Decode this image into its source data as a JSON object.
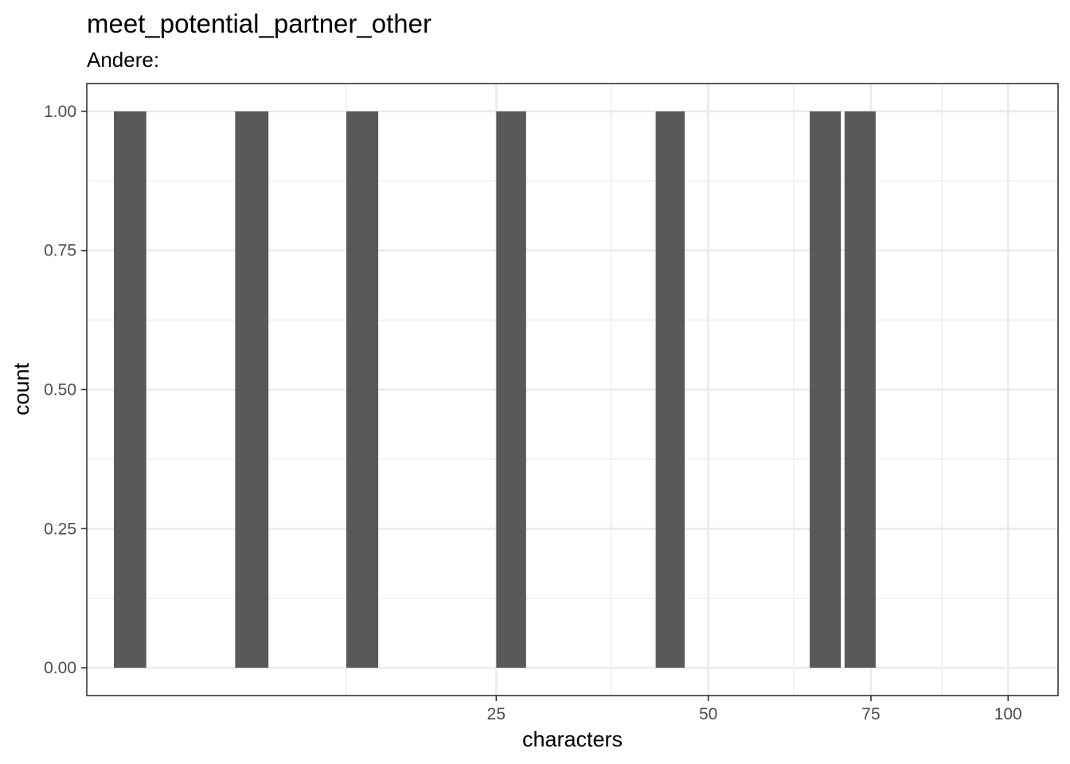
{
  "chart_data": {
    "type": "bar",
    "title": "meet_potential_partner_other",
    "subtitle": "Andere:",
    "xlabel": "characters",
    "ylabel": "count",
    "x_scale": "sqrt",
    "xlim": [
      1,
      110
    ],
    "ylim": [
      -0.05,
      1.05
    ],
    "x_ticks": [
      25,
      50,
      75,
      100
    ],
    "x_minor_ticks": [
      12.5,
      37.5,
      62.5,
      87.5
    ],
    "y_ticks": [
      0.0,
      0.25,
      0.5,
      0.75,
      1.0
    ],
    "y_tick_labels": [
      "0.00",
      "0.25",
      "0.50",
      "0.75",
      "1.00"
    ],
    "grid": true,
    "bar_color": "#595959",
    "bars": [
      {
        "x_start": 1.6,
        "x_end": 2.5,
        "count": 1
      },
      {
        "x_start": 6.0,
        "x_end": 7.7,
        "count": 1
      },
      {
        "x_start": 12.5,
        "x_end": 14.8,
        "count": 1
      },
      {
        "x_start": 25.0,
        "x_end": 28.0,
        "count": 1
      },
      {
        "x_start": 43.0,
        "x_end": 46.8,
        "count": 1
      },
      {
        "x_start": 65.0,
        "x_end": 70.0,
        "count": 1
      },
      {
        "x_start": 70.6,
        "x_end": 75.8,
        "count": 1
      }
    ]
  }
}
